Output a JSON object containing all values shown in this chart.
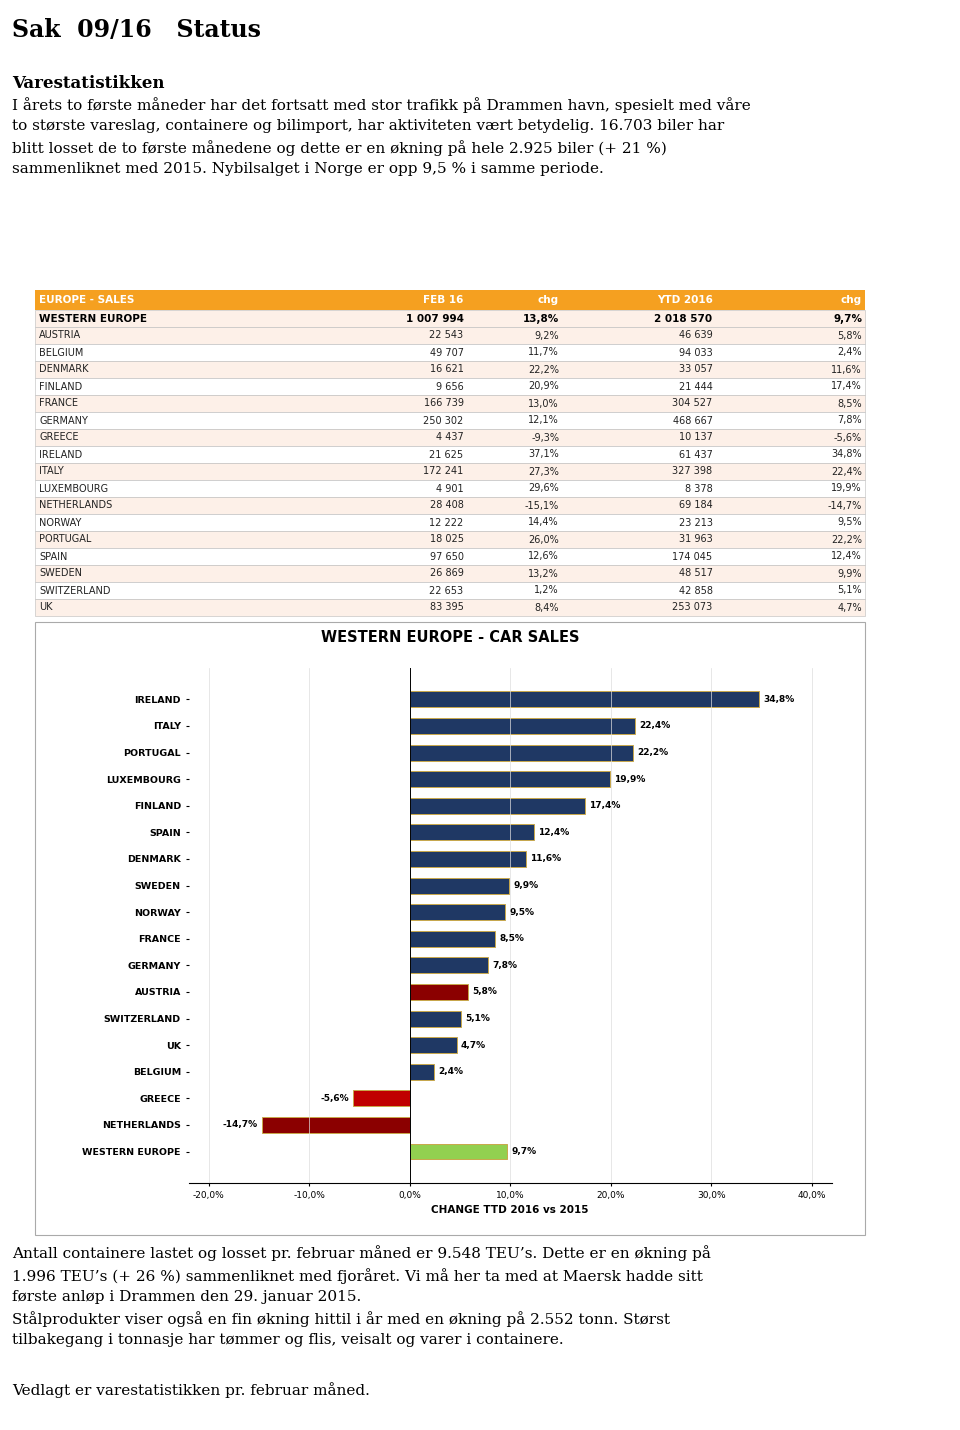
{
  "title": "Sak  09/16   Status",
  "section1_title": "Varestatistikken",
  "section1_text": "I årets to første måneder har det fortsatt med stor trafikk på Drammen havn, spesielt med våre\nto største vareslag, containere og bilimport, har aktiviteten vært betydelig. 16.703 biler har\nblitt losset de to første månedene og dette er en økning på hele 2.925 biler (+ 21 %)\nsammenliknet med 2015. Nybilsalget i Norge er opp 9,5 % i samme periode.",
  "table_header": [
    "EUROPE - SALES",
    "FEB 16",
    "chg",
    "YTD 2016",
    "chg"
  ],
  "table_header_bg": "#F5A020",
  "table_bold_row": [
    "WESTERN EUROPE",
    "1 007 994",
    "13,8%",
    "2 018 570",
    "9,7%"
  ],
  "table_rows": [
    [
      "AUSTRIA",
      "22 543",
      "9,2%",
      "46 639",
      "5,8%"
    ],
    [
      "BELGIUM",
      "49 707",
      "11,7%",
      "94 033",
      "2,4%"
    ],
    [
      "DENMARK",
      "16 621",
      "22,2%",
      "33 057",
      "11,6%"
    ],
    [
      "FINLAND",
      "9 656",
      "20,9%",
      "21 444",
      "17,4%"
    ],
    [
      "FRANCE",
      "166 739",
      "13,0%",
      "304 527",
      "8,5%"
    ],
    [
      "GERMANY",
      "250 302",
      "12,1%",
      "468 667",
      "7,8%"
    ],
    [
      "GREECE",
      "4 437",
      "-9,3%",
      "10 137",
      "-5,6%"
    ],
    [
      "IRELAND",
      "21 625",
      "37,1%",
      "61 437",
      "34,8%"
    ],
    [
      "ITALY",
      "172 241",
      "27,3%",
      "327 398",
      "22,4%"
    ],
    [
      "LUXEMBOURG",
      "4 901",
      "29,6%",
      "8 378",
      "19,9%"
    ],
    [
      "NETHERLANDS",
      "28 408",
      "-15,1%",
      "69 184",
      "-14,7%"
    ],
    [
      "NORWAY",
      "12 222",
      "14,4%",
      "23 213",
      "9,5%"
    ],
    [
      "PORTUGAL",
      "18 025",
      "26,0%",
      "31 963",
      "22,2%"
    ],
    [
      "SPAIN",
      "97 650",
      "12,6%",
      "174 045",
      "12,4%"
    ],
    [
      "SWEDEN",
      "26 869",
      "13,2%",
      "48 517",
      "9,9%"
    ],
    [
      "SWITZERLAND",
      "22 653",
      "1,2%",
      "42 858",
      "5,1%"
    ],
    [
      "UK",
      "83 395",
      "8,4%",
      "253 073",
      "4,7%"
    ]
  ],
  "table_row_bg_odd": "#FDF0E8",
  "table_row_bg_even": "#FFFFFF",
  "chart_title": "WESTERN EUROPE - CAR SALES",
  "chart_xlabel": "CHANGE TTD 2016 vs 2015",
  "chart_categories": [
    "WESTERN EUROPE",
    "NETHERLANDS",
    "GREECE",
    "BELGIUM",
    "UK",
    "SWITZERLAND",
    "AUSTRIA",
    "GERMANY",
    "FRANCE",
    "NORWAY",
    "SWEDEN",
    "DENMARK",
    "SPAIN",
    "FINLAND",
    "LUXEMBOURG",
    "PORTUGAL",
    "ITALY",
    "IRELAND"
  ],
  "chart_values": [
    9.7,
    -14.7,
    -5.6,
    2.4,
    4.7,
    5.1,
    5.8,
    7.8,
    8.5,
    9.5,
    9.9,
    11.6,
    12.4,
    17.4,
    19.9,
    22.2,
    22.4,
    34.8
  ],
  "chart_colors": [
    "#92D050",
    "#8B0000",
    "#C00000",
    "#1F3864",
    "#1F3864",
    "#1F3864",
    "#8B0000",
    "#1F3864",
    "#1F3864",
    "#1F3864",
    "#1F3864",
    "#1F3864",
    "#1F3864",
    "#1F3864",
    "#1F3864",
    "#1F3864",
    "#1F3864",
    "#1F3864"
  ],
  "chart_bar_border": "#C8A84B",
  "section2_text": "Antall containere lastet og losset pr. februar måned er 9.548 TEU’s. Dette er en økning på\n1.996 TEU’s (+ 26 %) sammenliknet med fjoråret. Vi må her ta med at Maersk hadde sitt\nførste anløp i Drammen den 29. januar 2015.\nStålprodukter viser også en fin økning hittil i år med en økning på 2.552 tonn. Størst\ntilbakegang i tonnasje har tømmer og flis, veisalt og varer i containere.",
  "section3_text": "Vedlagt er varestatistikken pr. februar måned.",
  "bg_color": "#FFFFFF"
}
